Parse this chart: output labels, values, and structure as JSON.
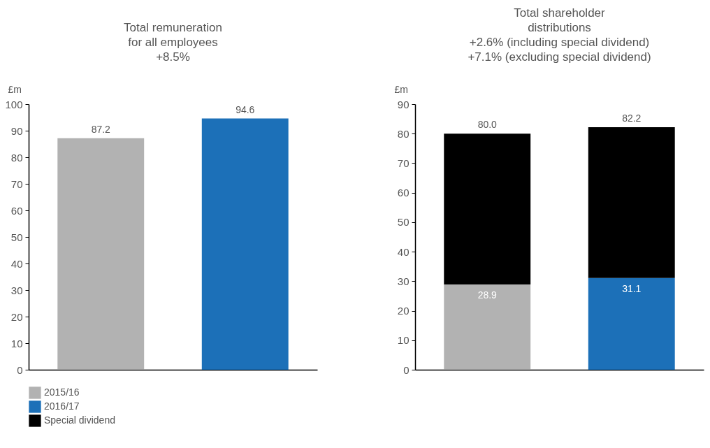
{
  "chart_data": [
    {
      "type": "bar",
      "title": "Total remuneration\nfor all employees\n+8.5%",
      "ylabel": "£m",
      "categories": [
        null,
        null
      ],
      "series": [
        {
          "name": "2015/16",
          "color": "#b2b2b2",
          "values": [
            87.2,
            null
          ]
        },
        {
          "name": "2016/17",
          "color": "#1c70b8",
          "values": [
            null,
            94.6
          ]
        }
      ],
      "ylim": [
        0,
        100
      ],
      "yticks": [
        0,
        10,
        20,
        30,
        40,
        50,
        60,
        70,
        80,
        90,
        100
      ],
      "grid": false,
      "tick_labels": "y",
      "data_labels": true,
      "legend": "bottom left"
    },
    {
      "type": "bar",
      "title": "Total shareholder\ndistributions\n+2.6% (including special dividend)\n+7.1% (excluding special dividend)",
      "ylabel": "£m",
      "categories": [
        null,
        null
      ],
      "stacked": true,
      "series": [
        {
          "name": "2015/16",
          "color": "#b2b2b2",
          "values": [
            28.9,
            null
          ],
          "value_labels": [
            "28.9",
            null
          ]
        },
        {
          "name": "2016/17",
          "color": "#1c70b8",
          "values": [
            null,
            31.1
          ],
          "value_labels": [
            null,
            "31.1"
          ]
        },
        {
          "name": "Special dividend",
          "color": "#000000",
          "values": [
            51.1,
            51.1
          ]
        }
      ],
      "totals": [
        "80.0",
        "82.2"
      ],
      "ylim": [
        0,
        90
      ],
      "yticks": [
        0,
        10,
        20,
        30,
        40,
        50,
        60,
        70,
        80,
        90
      ],
      "grid": false,
      "tick_labels": "y",
      "legend": "bottom left"
    }
  ]
}
